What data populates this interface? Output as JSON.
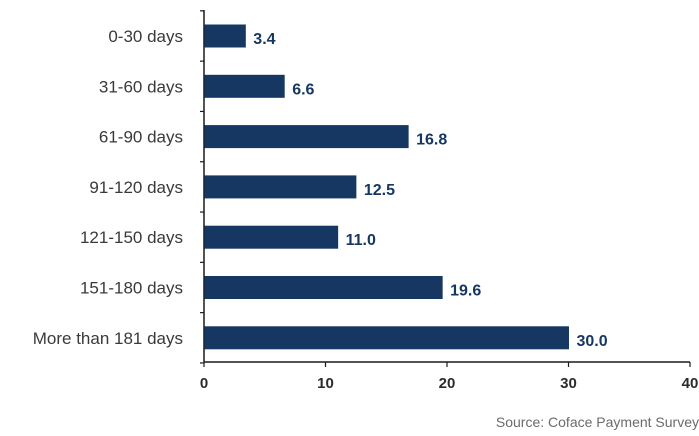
{
  "colors": {
    "bar": "#173763",
    "axis": "#1a1a1a"
  },
  "chart_data": {
    "type": "bar",
    "orientation": "horizontal",
    "categories": [
      "0-30 days",
      "31-60 days",
      "61-90 days",
      "91-120 days",
      "121-150 days",
      "151-180 days",
      "More than 181 days"
    ],
    "values": [
      3.4,
      6.6,
      16.8,
      12.5,
      11.0,
      19.6,
      30.0
    ],
    "value_labels": [
      "3.4",
      "6.6",
      "16.8",
      "12.5",
      "11.0",
      "19.6",
      "30.0"
    ],
    "xlim": [
      0,
      40
    ],
    "x_ticks": [
      0,
      10,
      20,
      30,
      40
    ],
    "title": "",
    "xlabel": "",
    "ylabel": "",
    "grid": false,
    "source": "Source: Coface Payment Survey"
  }
}
